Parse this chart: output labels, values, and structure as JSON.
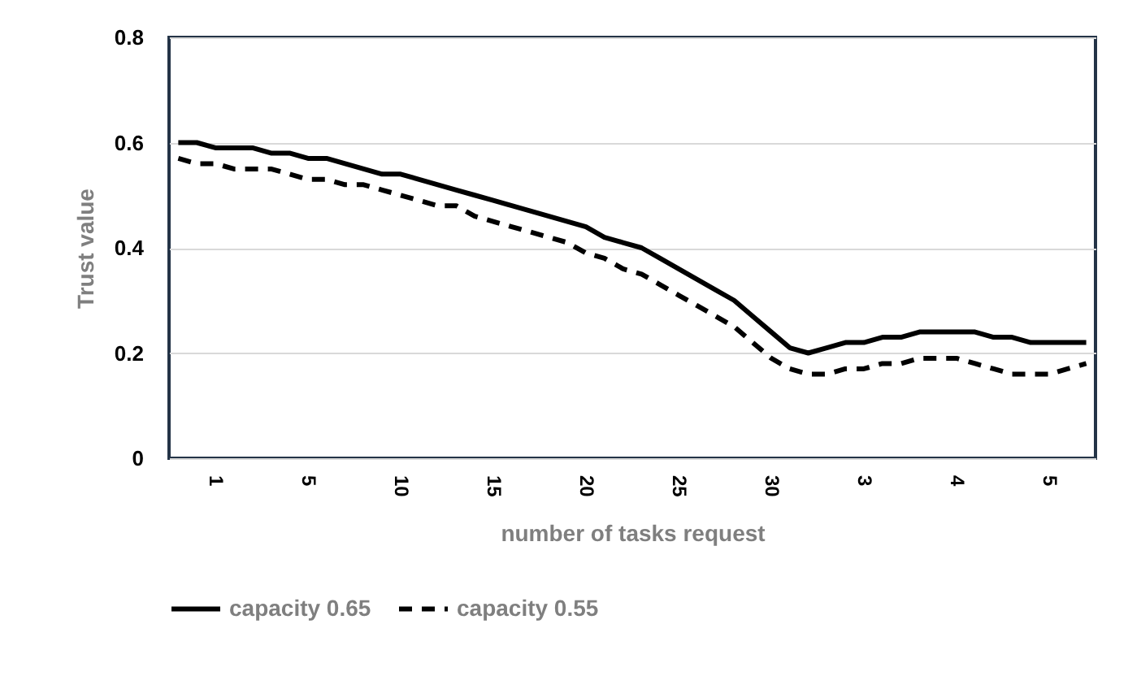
{
  "chart_data": {
    "type": "line",
    "xlabel": "number of tasks request",
    "ylabel": "Trust value",
    "categories": [
      null,
      null,
      "1",
      null,
      null,
      null,
      null,
      "5",
      null,
      null,
      null,
      null,
      "10",
      null,
      null,
      null,
      null,
      "15",
      null,
      null,
      null,
      null,
      "20",
      null,
      null,
      null,
      null,
      "25",
      null,
      null,
      null,
      null,
      "30",
      null,
      null,
      null,
      null,
      "3",
      null,
      null,
      null,
      null,
      "4",
      null,
      null,
      null,
      null,
      "5",
      null,
      null
    ],
    "series": [
      {
        "name": "capacity 0.65",
        "color": "#000000",
        "line_style": "solid",
        "values": [
          0.6,
          0.6,
          0.59,
          0.59,
          0.59,
          0.58,
          0.58,
          0.57,
          0.57,
          0.56,
          0.55,
          0.54,
          0.54,
          0.53,
          0.52,
          0.51,
          0.5,
          0.49,
          0.48,
          0.47,
          0.46,
          0.45,
          0.44,
          0.42,
          0.41,
          0.4,
          0.38,
          0.36,
          0.34,
          0.32,
          0.3,
          0.27,
          0.24,
          0.21,
          0.2,
          0.21,
          0.22,
          0.22,
          0.23,
          0.23,
          0.24,
          0.24,
          0.24,
          0.24,
          0.23,
          0.23,
          0.22,
          0.22,
          0.22,
          0.22
        ]
      },
      {
        "name": "capacity 0.55",
        "color": "#000000",
        "line_style": "dashed",
        "values": [
          0.57,
          0.56,
          0.56,
          0.55,
          0.55,
          0.55,
          0.54,
          0.53,
          0.53,
          0.52,
          0.52,
          0.51,
          0.5,
          0.49,
          0.48,
          0.48,
          0.46,
          0.45,
          0.44,
          0.43,
          0.42,
          0.41,
          0.39,
          0.38,
          0.36,
          0.35,
          0.33,
          0.31,
          0.29,
          0.27,
          0.25,
          0.22,
          0.19,
          0.17,
          0.16,
          0.16,
          0.17,
          0.17,
          0.18,
          0.18,
          0.19,
          0.19,
          0.19,
          0.18,
          0.17,
          0.16,
          0.16,
          0.16,
          0.17,
          0.18
        ]
      }
    ],
    "ylim": [
      0,
      0.8
    ],
    "yticks": [
      0,
      0.2,
      0.4,
      0.6,
      0.8
    ],
    "grid": "y",
    "legend": "bottom",
    "marker": "none"
  }
}
